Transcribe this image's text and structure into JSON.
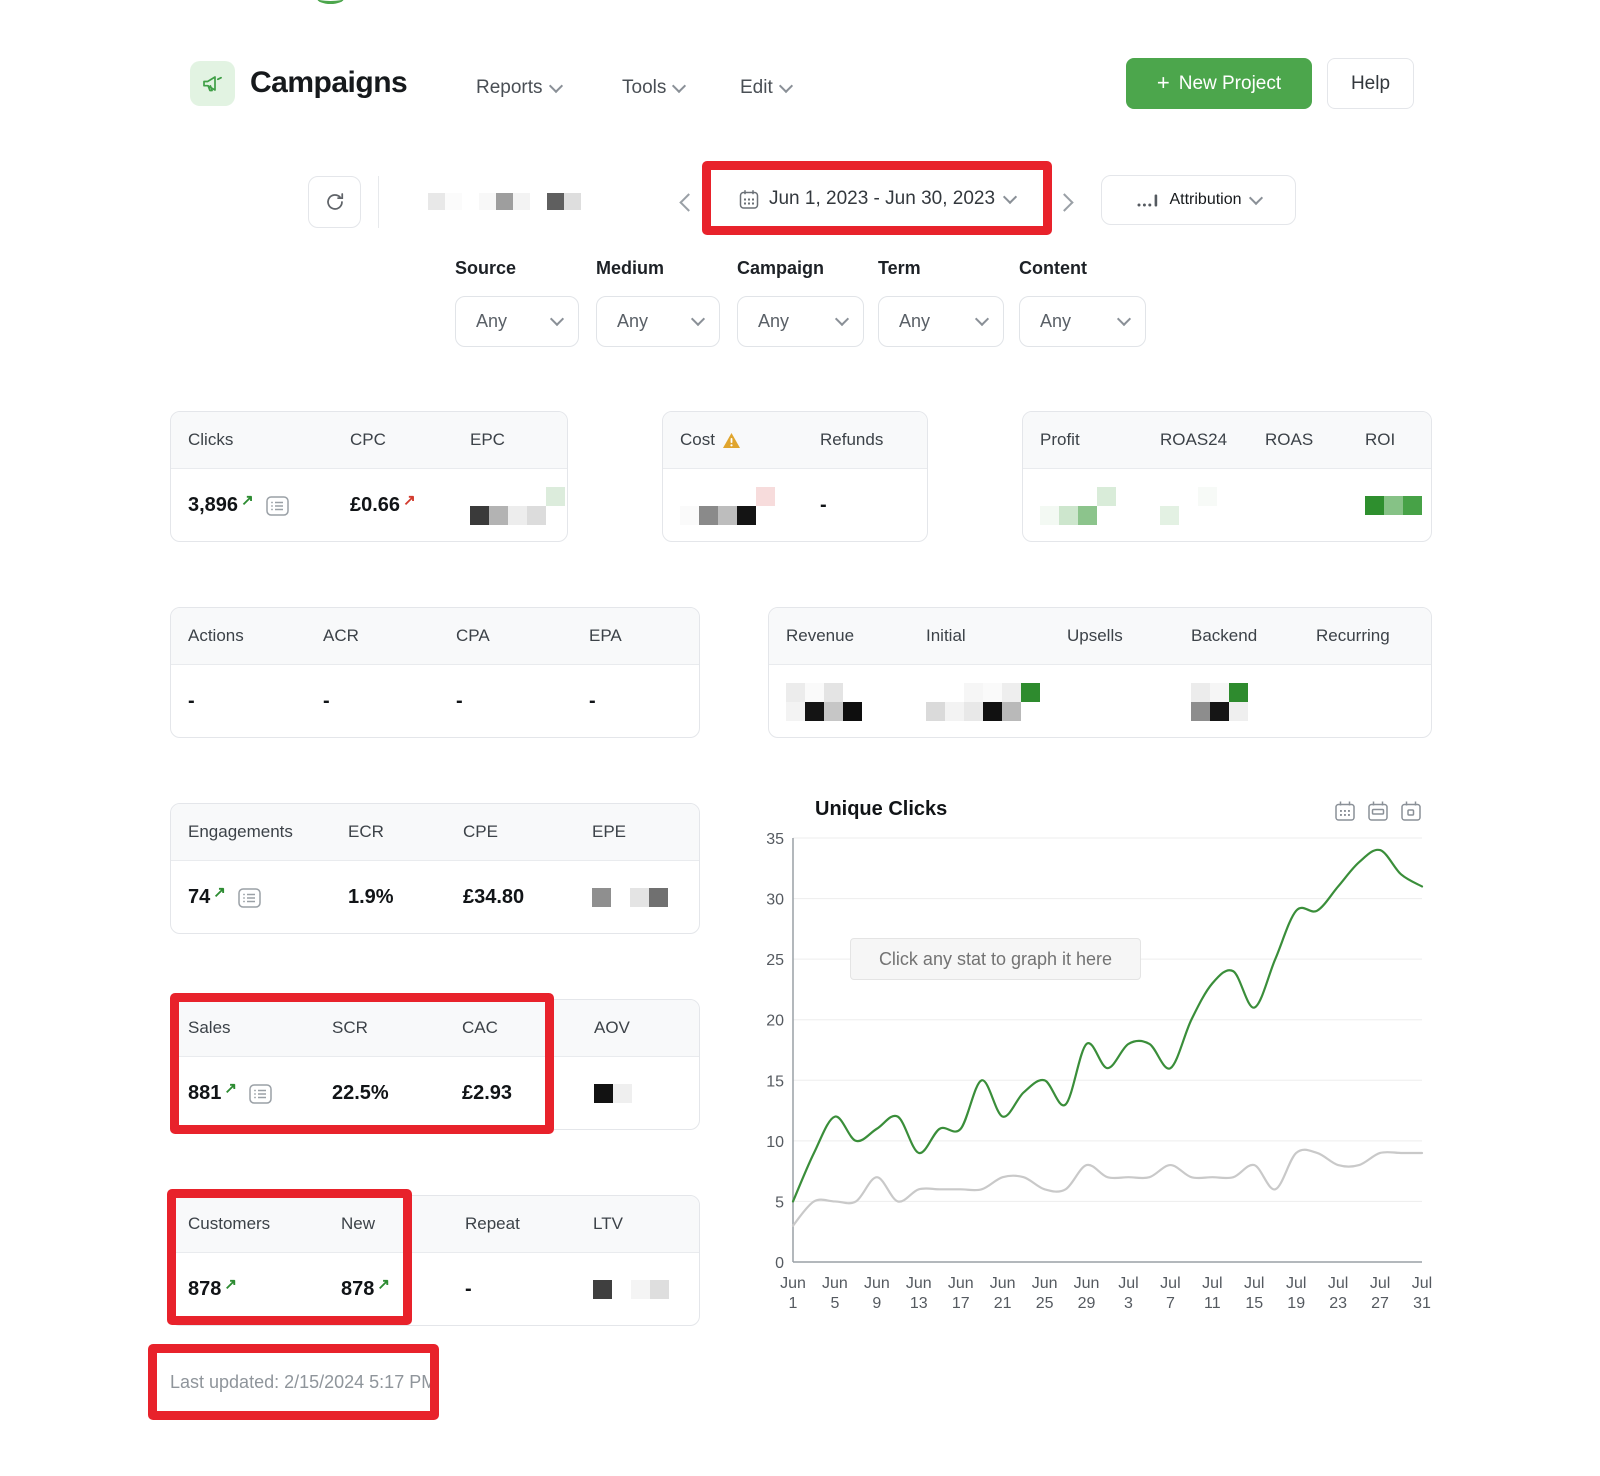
{
  "colors": {
    "accent_green": "#4ca64c",
    "annotation_red": "#e8222b",
    "chart_green": "#3a8e3a",
    "chart_gray": "#c9c9c9",
    "warning_amber": "#e0a52e",
    "positive_arrow": "#2d8c32",
    "negative_arrow": "#d23b2e"
  },
  "header": {
    "title": "Campaigns",
    "menus": [
      "Reports",
      "Tools",
      "Edit"
    ],
    "new_project_plus": "+",
    "new_project_label": "New Project",
    "help_label": "Help"
  },
  "toolbar": {
    "date_range": "Jun 1, 2023 - Jun 30, 2023",
    "attribution_label": "Attribution"
  },
  "filters": [
    {
      "label": "Source",
      "value": "Any"
    },
    {
      "label": "Medium",
      "value": "Any"
    },
    {
      "label": "Campaign",
      "value": "Any"
    },
    {
      "label": "Term",
      "value": "Any"
    },
    {
      "label": "Content",
      "value": "Any"
    }
  ],
  "icons": {
    "up_arrow": "↗"
  },
  "cards": {
    "traffic": {
      "headers": [
        "Clicks",
        "CPC",
        "EPC"
      ],
      "clicks": "3,896",
      "cpc": "£0.66"
    },
    "cost": {
      "headers": [
        "Cost",
        "Refunds"
      ],
      "refunds": "-"
    },
    "profit": {
      "headers": [
        "Profit",
        "ROAS24",
        "ROAS",
        "ROI"
      ]
    },
    "actions": {
      "headers": [
        "Actions",
        "ACR",
        "CPA",
        "EPA"
      ],
      "actions": "-",
      "acr": "-",
      "cpa": "-",
      "epa": "-"
    },
    "revenue": {
      "headers": [
        "Revenue",
        "Initial",
        "Upsells",
        "Backend",
        "Recurring"
      ]
    },
    "engagements": {
      "headers": [
        "Engagements",
        "ECR",
        "CPE",
        "EPE"
      ],
      "engagements": "74",
      "ecr": "1.9%",
      "cpe": "£34.80"
    },
    "sales": {
      "headers": [
        "Sales",
        "SCR",
        "CAC",
        "AOV"
      ],
      "sales": "881",
      "scr": "22.5%",
      "cac": "£2.93"
    },
    "customers": {
      "headers": [
        "Customers",
        "New",
        "Repeat",
        "LTV"
      ],
      "customers": "878",
      "new": "878",
      "repeat": "-"
    }
  },
  "redactions": {
    "project": {
      "size": 17,
      "cols": 9,
      "cells": [
        "#e8e8e8",
        "#fbfbfb",
        null,
        "#f8f8f8",
        "#9e9e9e",
        "#f3f3f3",
        null,
        "#5f5f5f",
        "#dedede"
      ]
    },
    "epc": {
      "size": 19,
      "cols": 5,
      "cells": [
        null,
        null,
        null,
        null,
        "#dcecdc",
        "#3a3a3a",
        "#b3b3b3",
        "#ededed",
        "#dcdcdc",
        null
      ]
    },
    "cost": {
      "size": 19,
      "cols": 5,
      "cells": [
        null,
        null,
        null,
        null,
        "#f7dcdc",
        "#fafafa",
        "#8a8a8a",
        "#bdbdbd",
        "#141414",
        null
      ]
    },
    "profit": {
      "size": 19,
      "cols": 4,
      "cells": [
        null,
        null,
        null,
        "#d9ecd9",
        "#f3f9f3",
        "#cde6cd",
        "#8cc48c",
        null
      ]
    },
    "roas24": {
      "size": 19,
      "cols": 3,
      "cells": [
        null,
        null,
        "#f7faf7",
        "#e3f1e3",
        null,
        null
      ]
    },
    "roi": {
      "size": 19,
      "cols": 3,
      "cells": [
        "#2e8f2e",
        "#86c286",
        "#47a247"
      ]
    },
    "revenue": {
      "size": 19,
      "cols": 4,
      "cells": [
        "#ececec",
        "#fafafa",
        "#e4e4e4",
        null,
        "#f3f3f3",
        "#141414",
        "#c6c6c6",
        "#0e0e0e"
      ]
    },
    "initial": {
      "size": 19,
      "cols": 6,
      "cells": [
        null,
        null,
        "#f6f6f6",
        "#fafafa",
        "#eeeeee",
        "#2e8b2e",
        "#dadada",
        "#f3f3f3",
        "#e8e8e8",
        "#111111",
        "#b9b9b9",
        null
      ]
    },
    "backend": {
      "size": 19,
      "cols": 3,
      "cells": [
        "#ececec",
        "#f6f6f6",
        "#2e8b2e",
        "#8d8d8d",
        "#151515",
        "#efefef"
      ]
    },
    "epe": {
      "size": 19,
      "cols": 4,
      "cells": [
        "#8f8f8f",
        null,
        "#e4e4e4",
        "#707070"
      ]
    },
    "aov": {
      "size": 19,
      "cols": 2,
      "cells": [
        "#121212",
        "#efefef"
      ]
    },
    "ltv": {
      "size": 19,
      "cols": 4,
      "cells": [
        "#3f3f3f",
        null,
        "#f4f4f4",
        "#dedede"
      ]
    }
  },
  "footer": {
    "last_updated": "Last updated: 2/15/2024 5:17 PM"
  },
  "chart_data": {
    "type": "line",
    "title": "Unique Clicks",
    "hint": "Click any stat to graph it here",
    "x_unit": "days offset from Jun 1 (2-day sampling)",
    "x": [
      0,
      2,
      4,
      6,
      8,
      10,
      12,
      14,
      16,
      18,
      20,
      22,
      24,
      26,
      28,
      30,
      32,
      34,
      36,
      38,
      40,
      42,
      44,
      46,
      48,
      50,
      52,
      54,
      56,
      58,
      60
    ],
    "series": [
      {
        "name": "gray_line",
        "color": "#c9c9c9",
        "values": [
          3,
          5,
          5,
          5,
          7,
          5,
          6,
          6,
          6,
          6,
          7,
          7,
          6,
          6,
          8,
          7,
          7,
          7,
          8,
          7,
          7,
          7,
          8,
          6,
          9,
          9,
          8,
          8,
          9,
          9,
          9
        ]
      },
      {
        "name": "Unique Clicks",
        "color": "#3a8e3a",
        "values": [
          5,
          9,
          12,
          10,
          11,
          12,
          9,
          11,
          11,
          15,
          12,
          14,
          15,
          13,
          18,
          16,
          18,
          18,
          16,
          20,
          23,
          24,
          21,
          25,
          29,
          29,
          31,
          33,
          34,
          32,
          31
        ]
      }
    ],
    "ylim": [
      0,
      35
    ],
    "yticks": [
      0,
      5,
      10,
      15,
      20,
      25,
      30,
      35
    ],
    "x_tick_days": [
      0,
      4,
      8,
      12,
      16,
      20,
      24,
      28,
      32,
      36,
      40,
      44,
      48,
      52,
      56,
      60
    ],
    "x_tick_labels": [
      "Jun 1",
      "Jun 5",
      "Jun 9",
      "Jun 13",
      "Jun 17",
      "Jun 21",
      "Jun 25",
      "Jun 29",
      "Jul 3",
      "Jul 7",
      "Jul 11",
      "Jul 15",
      "Jul 19",
      "Jul 23",
      "Jul 27",
      "Jul 31"
    ],
    "grid": "horizontal",
    "legend": "none"
  }
}
